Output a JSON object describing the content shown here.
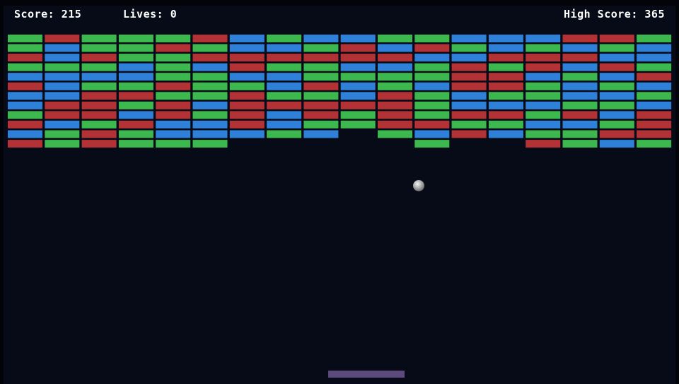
{
  "hud": {
    "score": "Score: 215",
    "lives": "Lives: 0",
    "high_score": "High Score: 365"
  }
}
